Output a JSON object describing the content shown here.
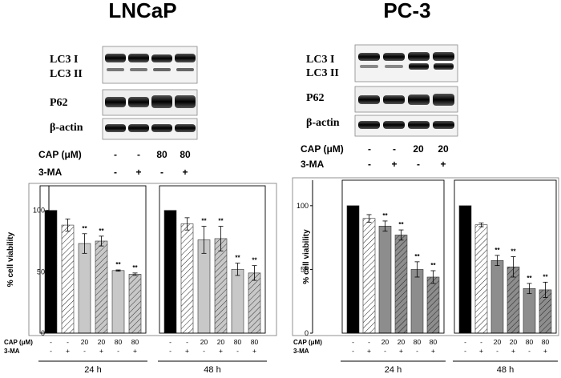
{
  "figure": {
    "panels": [
      {
        "title": "LNCaP",
        "blot_labels": [
          "LC3 I",
          "LC3 II",
          "P62",
          "β-actin"
        ],
        "treatments": [
          {
            "label": "CAP (μM)",
            "values": [
              "-",
              "-",
              "80",
              "80"
            ]
          },
          {
            "label": "3-MA",
            "values": [
              "-",
              "+",
              "-",
              "+"
            ]
          }
        ]
      },
      {
        "title": "PC-3",
        "blot_labels": [
          "LC3 I",
          "LC3 II",
          "P62",
          "β-actin"
        ],
        "treatments": [
          {
            "label": "CAP (μM)",
            "values": [
              "-",
              "-",
              "20",
              "20"
            ]
          },
          {
            "label": "3-MA",
            "values": [
              "-",
              "+",
              "-",
              "+"
            ]
          }
        ]
      }
    ]
  },
  "chart_data": [
    {
      "type": "bar",
      "ylabel": "% cell viability",
      "ylim": [
        0,
        120
      ],
      "yticks": [
        0,
        50,
        100
      ],
      "groups": [
        "24 h",
        "48 h"
      ],
      "cond_rows": [
        {
          "label": "CAP (μM)",
          "values": [
            "-",
            "-",
            "20",
            "20",
            "80",
            "80"
          ]
        },
        {
          "label": "3-MA",
          "values": [
            "-",
            "+",
            "-",
            "+",
            "-",
            "+"
          ]
        }
      ],
      "series": [
        {
          "group": "24 h",
          "values": [
            100,
            88,
            73,
            75,
            51,
            48
          ],
          "errors": [
            0,
            5,
            8,
            4,
            0.5,
            1
          ],
          "sig": [
            "",
            "",
            "**",
            "**",
            "**",
            "**"
          ]
        },
        {
          "group": "48 h",
          "values": [
            100,
            89,
            76,
            77,
            52,
            49
          ],
          "errors": [
            0,
            5,
            11,
            10,
            5,
            6
          ],
          "sig": [
            "",
            "",
            "**",
            "**",
            "**",
            "**"
          ]
        }
      ]
    },
    {
      "type": "bar",
      "ylabel": "% cell viability",
      "ylim": [
        0,
        120
      ],
      "yticks": [
        0,
        50,
        100
      ],
      "groups": [
        "24 h",
        "48 h"
      ],
      "cond_rows": [
        {
          "label": "CAP (μM)",
          "values": [
            "-",
            "-",
            "20",
            "20",
            "80",
            "80"
          ]
        },
        {
          "label": "3-MA",
          "values": [
            "-",
            "+",
            "-",
            "+",
            "-",
            "+"
          ]
        }
      ],
      "series": [
        {
          "group": "24 h",
          "values": [
            100,
            90,
            84,
            77,
            50,
            44
          ],
          "errors": [
            0,
            3,
            4,
            4,
            6,
            5
          ],
          "sig": [
            "",
            "",
            "**",
            "**",
            "**",
            "**"
          ]
        },
        {
          "group": "48 h",
          "values": [
            100,
            85,
            57,
            52,
            35,
            34
          ],
          "errors": [
            0,
            1.5,
            4,
            8,
            4,
            6
          ],
          "sig": [
            "",
            "",
            "**",
            "**",
            "**",
            "**"
          ]
        }
      ]
    }
  ]
}
